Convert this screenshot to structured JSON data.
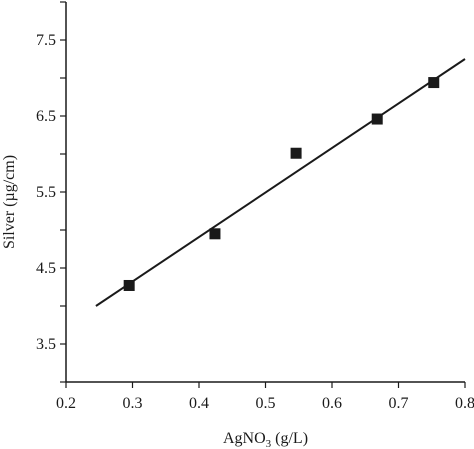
{
  "chart_data": {
    "type": "scatter",
    "xlabel": "AgNO",
    "xlabel_sub": "3",
    "xlabel_unit": " (g/L)",
    "ylabel": "Silver (µg/cm)",
    "xlim": [
      0.2,
      0.8
    ],
    "ylim": [
      3.0,
      8.0
    ],
    "x_ticks": [
      0.2,
      0.3,
      0.4,
      0.5,
      0.6,
      0.7,
      0.8
    ],
    "x_tick_labels": [
      "0.2",
      "0.3",
      "0.4",
      "0.5",
      "0.6",
      "0.7",
      "0.8"
    ],
    "y_ticks": [
      3.5,
      4.5,
      5.5,
      6.5,
      7.5
    ],
    "y_tick_labels": [
      "3.5",
      "4.5",
      "5.5",
      "6.5",
      "7.5"
    ],
    "grid": false,
    "series": [
      {
        "marker": "square",
        "points": [
          {
            "x": 0.295,
            "y": 4.27
          },
          {
            "x": 0.424,
            "y": 4.95
          },
          {
            "x": 0.546,
            "y": 6.01
          },
          {
            "x": 0.668,
            "y": 6.46
          },
          {
            "x": 0.753,
            "y": 6.94
          }
        ]
      }
    ],
    "fit_line": {
      "x": [
        0.245,
        0.8
      ],
      "y": [
        4.0,
        7.25
      ]
    },
    "colors": {
      "marker": "#1a1a1a",
      "line": "#1a1a1a",
      "axis": "#1a1a1a"
    }
  }
}
